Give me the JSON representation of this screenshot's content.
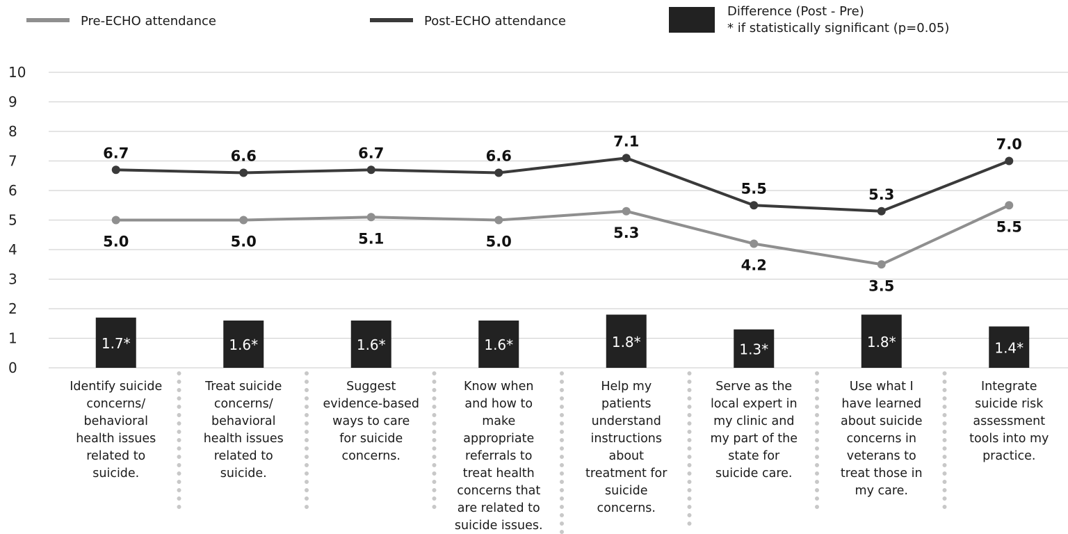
{
  "legend": {
    "pre_label": "Pre-ECHO attendance",
    "post_label": "Post-ECHO attendance",
    "diff_label_line1": "Difference (Post - Pre)",
    "diff_label_line2": "* if statistically significant (p=0.05)"
  },
  "chart_data": {
    "type": "line",
    "ylim": [
      0,
      10
    ],
    "yticks": [
      0,
      1,
      2,
      3,
      4,
      5,
      6,
      7,
      8,
      9,
      10
    ],
    "grid": true,
    "legend_position": "top",
    "categories": [
      [
        "Identify suicide",
        "concerns/",
        "behavioral",
        "health issues",
        "related to",
        "suicide."
      ],
      [
        "Treat suicide",
        "concerns/",
        "behavioral",
        "health issues",
        "related to",
        "suicide."
      ],
      [
        "Suggest",
        "evidence-based",
        "ways to care",
        "for suicide",
        "concerns."
      ],
      [
        "Know when",
        "and how to",
        "make",
        "appropriate",
        "referrals to",
        "treat health",
        "concerns that",
        "are related to",
        "suicide issues."
      ],
      [
        "Help my",
        "patients",
        "understand",
        "instructions",
        "about",
        "treatment for",
        "suicide",
        "concerns."
      ],
      [
        "Serve as the",
        "local expert in",
        "my clinic and",
        "my part of the",
        "state for",
        "suicide care."
      ],
      [
        "Use what I",
        "have learned",
        "about suicide",
        "concerns in",
        "veterans to",
        "treat those in",
        "my care."
      ],
      [
        "Integrate",
        "suicide risk",
        "assessment",
        "tools into my",
        "practice."
      ]
    ],
    "series": [
      {
        "name": "Pre-ECHO attendance",
        "type": "line",
        "color": "#8f8f8f",
        "values": [
          5.0,
          5.0,
          5.1,
          5.0,
          5.3,
          4.2,
          3.5,
          5.5
        ],
        "labels": [
          "5.0",
          "5.0",
          "5.1",
          "5.0",
          "5.3",
          "4.2",
          "3.5",
          "5.5"
        ]
      },
      {
        "name": "Post-ECHO attendance",
        "type": "line",
        "color": "#3a3a3a",
        "values": [
          6.7,
          6.6,
          6.7,
          6.6,
          7.1,
          5.5,
          5.3,
          7.0
        ],
        "labels": [
          "6.7",
          "6.6",
          "6.7",
          "6.6",
          "7.1",
          "5.5",
          "5.3",
          "7.0"
        ]
      },
      {
        "name": "Difference (Post - Pre)",
        "type": "bar",
        "color": "#222222",
        "values": [
          1.7,
          1.6,
          1.6,
          1.6,
          1.8,
          1.3,
          1.8,
          1.4
        ],
        "labels": [
          "1.7*",
          "1.6*",
          "1.6*",
          "1.6*",
          "1.8*",
          "1.3*",
          "1.8*",
          "1.4*"
        ]
      }
    ]
  }
}
